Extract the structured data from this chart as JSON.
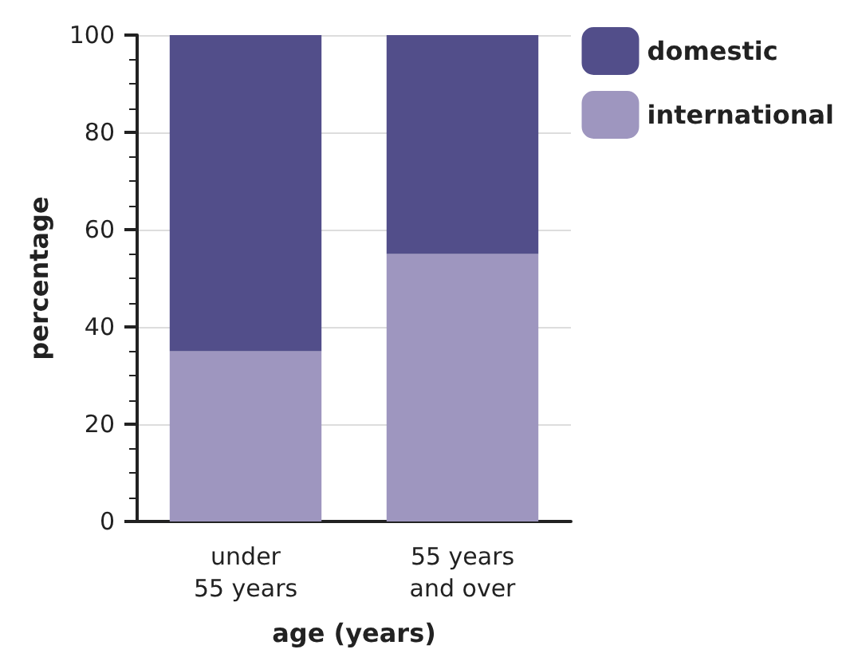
{
  "chart_data": {
    "type": "bar",
    "stacked": true,
    "xlabel": "age (years)",
    "ylabel": "percentage",
    "categories": [
      "under\n55 years",
      "55 years\nand over"
    ],
    "series": [
      {
        "name": "international",
        "color": "#9e96bf",
        "values": [
          35,
          55
        ]
      },
      {
        "name": "domestic",
        "color": "#524e8a",
        "values": [
          65,
          45
        ]
      }
    ],
    "ylim": [
      0,
      100
    ],
    "yticks": [
      0,
      20,
      40,
      60,
      80,
      100
    ],
    "grid": "y",
    "legend": "top right"
  }
}
